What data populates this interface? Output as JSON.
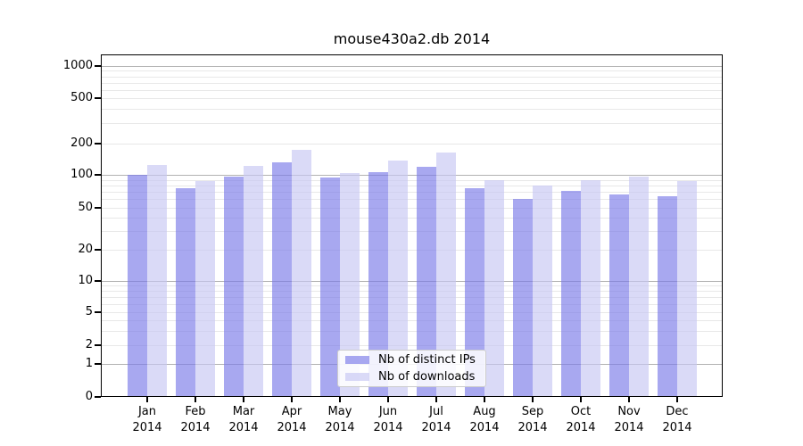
{
  "title": "mouse430a2.db 2014",
  "legend": {
    "items": [
      {
        "label": "Nb of distinct IPs"
      },
      {
        "label": "Nb of downloads"
      }
    ]
  },
  "colors": {
    "series_dark": "rgba(122,122,232,0.65)",
    "series_light": "rgba(198,198,243,0.65)",
    "grid_major": "#b2b2b2",
    "grid_minor": "#e8e8e8"
  },
  "chart_data": {
    "type": "bar",
    "title": "mouse430a2.db 2014",
    "categories": [
      "Jan",
      "Feb",
      "Mar",
      "Apr",
      "May",
      "Jun",
      "Jul",
      "Aug",
      "Sep",
      "Oct",
      "Nov",
      "Dec"
    ],
    "x_sublabel": "2014",
    "series": [
      {
        "name": "Nb of distinct IPs",
        "color": "rgba(122,122,232,0.65)",
        "values": [
          100,
          75,
          96,
          133,
          94,
          106,
          120,
          75,
          60,
          71,
          66,
          64
        ]
      },
      {
        "name": "Nb of downloads",
        "color": "rgba(198,198,243,0.65)",
        "values": [
          124,
          88,
          121,
          173,
          104,
          138,
          164,
          89,
          80,
          90,
          97,
          87
        ]
      }
    ],
    "xlabel": "",
    "ylabel": "",
    "yscale": "symlog",
    "y_ticks": [
      0,
      1,
      2,
      5,
      10,
      20,
      50,
      100,
      200,
      500,
      1000
    ],
    "ylim": [
      0,
      1300
    ],
    "grid": true,
    "legend_position": "lower center"
  }
}
